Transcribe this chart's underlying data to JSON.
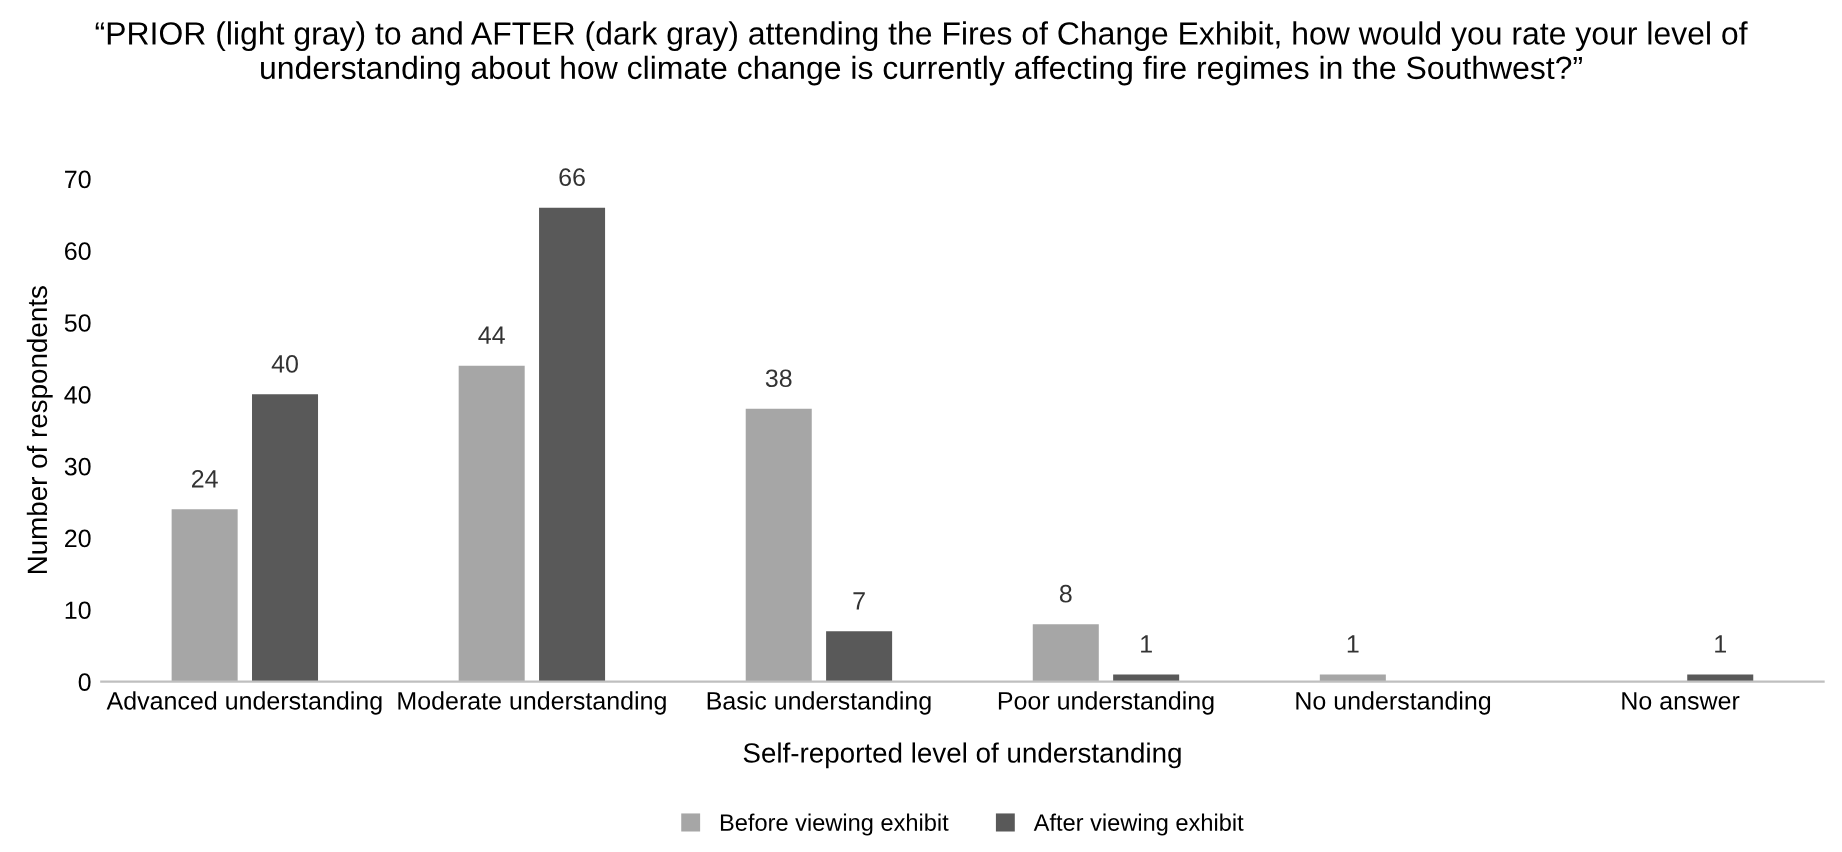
{
  "chart_data": {
    "type": "bar",
    "title": "“PRIOR (light gray) to and AFTER (dark gray) attending the Fires of Change Exhibit, how would you rate your level of understanding about how climate change is currently affecting fire regimes in the Southwest?”",
    "xlabel": "Self-reported level of understanding",
    "ylabel": "Number of respondents",
    "categories": [
      "Advanced understanding",
      "Moderate understanding",
      "Basic understanding",
      "Poor understanding",
      "No understanding",
      "No answer"
    ],
    "series": [
      {
        "name": "Before viewing exhibit",
        "color": "#a6a6a6",
        "values": [
          24,
          44,
          38,
          8,
          1,
          null
        ]
      },
      {
        "name": "After viewing exhibit",
        "color": "#595959",
        "values": [
          40,
          66,
          7,
          1,
          null,
          1
        ]
      }
    ],
    "ylim": [
      0,
      70
    ],
    "yticks": [
      0,
      10,
      20,
      30,
      40,
      50,
      60,
      70
    ],
    "grid": false,
    "legend": "bottom",
    "data_labels": true
  }
}
